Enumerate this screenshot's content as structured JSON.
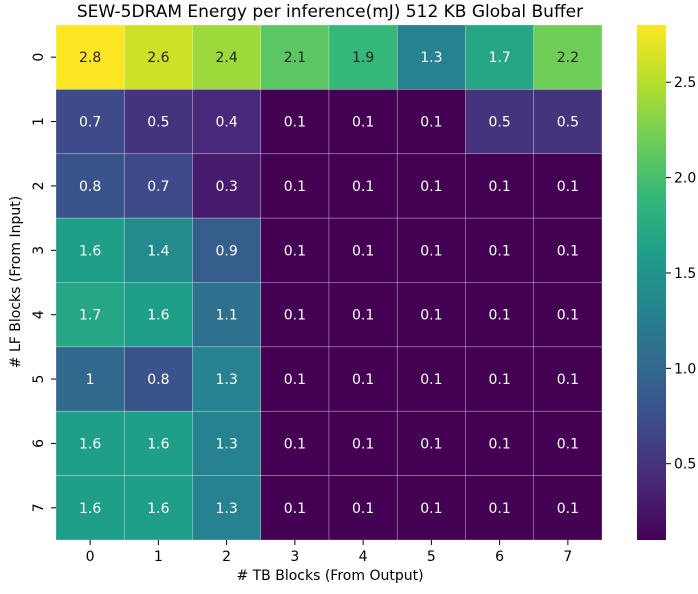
{
  "chart_data": {
    "type": "heatmap",
    "title": "SEW-5DRAM Energy per inference(mJ) 512 KB Global Buffer",
    "xlabel": "# TB Blocks (From Output)",
    "ylabel": "# LF Blocks (From Input)",
    "x_categories": [
      "0",
      "1",
      "2",
      "3",
      "4",
      "5",
      "6",
      "7"
    ],
    "y_categories": [
      "0",
      "1",
      "2",
      "3",
      "4",
      "5",
      "6",
      "7"
    ],
    "values": [
      [
        2.8,
        2.6,
        2.4,
        2.1,
        1.9,
        1.3,
        1.7,
        2.2
      ],
      [
        0.7,
        0.5,
        0.4,
        0.1,
        0.1,
        0.1,
        0.5,
        0.5
      ],
      [
        0.8,
        0.7,
        0.3,
        0.1,
        0.1,
        0.1,
        0.1,
        0.1
      ],
      [
        1.6,
        1.4,
        0.9,
        0.1,
        0.1,
        0.1,
        0.1,
        0.1
      ],
      [
        1.7,
        1.6,
        1.1,
        0.1,
        0.1,
        0.1,
        0.1,
        0.1
      ],
      [
        1.0,
        0.8,
        1.3,
        0.1,
        0.1,
        0.1,
        0.1,
        0.1
      ],
      [
        1.6,
        1.6,
        1.3,
        0.1,
        0.1,
        0.1,
        0.1,
        0.1
      ],
      [
        1.6,
        1.6,
        1.3,
        0.1,
        0.1,
        0.1,
        0.1,
        0.1
      ]
    ],
    "cell_labels": [
      [
        "2.8",
        "2.6",
        "2.4",
        "2.1",
        "1.9",
        "1.3",
        "1.7",
        "2.2"
      ],
      [
        "0.7",
        "0.5",
        "0.4",
        "0.1",
        "0.1",
        "0.1",
        "0.5",
        "0.5"
      ],
      [
        "0.8",
        "0.7",
        "0.3",
        "0.1",
        "0.1",
        "0.1",
        "0.1",
        "0.1"
      ],
      [
        "1.6",
        "1.4",
        "0.9",
        "0.1",
        "0.1",
        "0.1",
        "0.1",
        "0.1"
      ],
      [
        "1.7",
        "1.6",
        "1.1",
        "0.1",
        "0.1",
        "0.1",
        "0.1",
        "0.1"
      ],
      [
        "1",
        "0.8",
        "1.3",
        "0.1",
        "0.1",
        "0.1",
        "0.1",
        "0.1"
      ],
      [
        "1.6",
        "1.6",
        "1.3",
        "0.1",
        "0.1",
        "0.1",
        "0.1",
        "0.1"
      ],
      [
        "1.6",
        "1.6",
        "1.3",
        "0.1",
        "0.1",
        "0.1",
        "0.1",
        "0.1"
      ]
    ],
    "colormap": "viridis",
    "colorbar": {
      "vmin": 0.1,
      "vmax": 2.8,
      "ticks": [
        0.5,
        1.0,
        1.5,
        2.0,
        2.5
      ],
      "tick_labels": [
        "0.5",
        "1.0",
        "1.5",
        "2.0",
        "2.5"
      ]
    },
    "grid": "white cell separators",
    "legend": "colorbar right"
  }
}
